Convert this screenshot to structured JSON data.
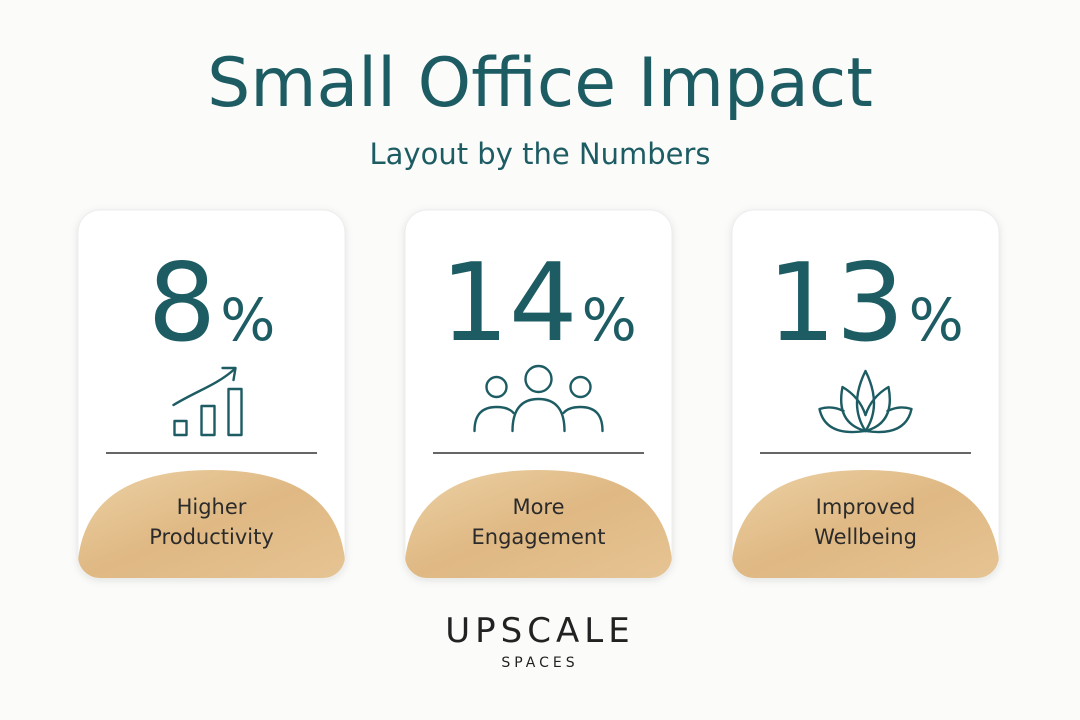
{
  "header": {
    "title": "Small Office Impact",
    "subtitle": "Layout by the Numbers"
  },
  "cards": [
    {
      "value": "8",
      "unit": "%",
      "label": [
        "Higher",
        "Productivity"
      ]
    },
    {
      "value": "14",
      "unit": "%",
      "label": [
        "More",
        "Engagement"
      ]
    },
    {
      "value": "13",
      "unit": "%",
      "label": [
        "Improved",
        "Wellbeing"
      ]
    }
  ],
  "brand": {
    "name": "UPSCALE",
    "tagline": "SPACES"
  }
}
